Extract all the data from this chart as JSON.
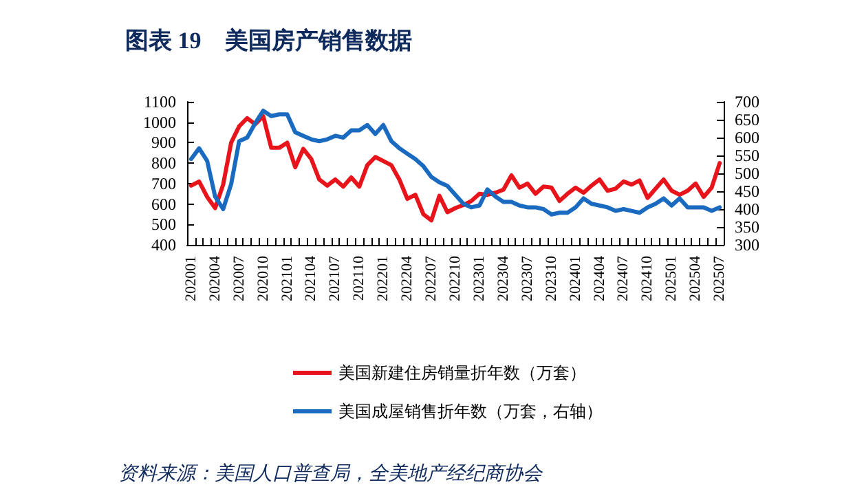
{
  "chart_data": {
    "type": "line",
    "title": "图表 19　美国房产销售数据",
    "annotations": [
      "资料来源：美国人口普查局，全美地产经纪商协会"
    ],
    "categories": [
      "202001",
      null,
      null,
      "202004",
      null,
      null,
      "202007",
      null,
      null,
      "202010",
      null,
      null,
      "202101",
      null,
      null,
      "202104",
      null,
      null,
      "202107",
      null,
      null,
      "202110",
      null,
      null,
      "202201",
      null,
      null,
      "202204",
      null,
      null,
      "202207",
      null,
      null,
      "202210",
      null,
      null,
      "202301",
      null,
      null,
      "202304",
      null,
      null,
      "202307",
      null,
      null,
      "202310",
      null,
      null,
      "202401",
      null,
      null,
      "202404",
      null,
      null,
      "202407",
      null,
      null,
      "202410",
      null,
      null,
      "202501",
      null,
      null,
      "202504",
      null,
      null,
      "202507"
    ],
    "series": [
      {
        "name": "美国新建住房销量折年数（万套）",
        "color": "#e8141b",
        "values": [
          690,
          710,
          635,
          580,
          695,
          900,
          980,
          1020,
          990,
          1030,
          875,
          875,
          900,
          780,
          870,
          820,
          720,
          690,
          720,
          685,
          730,
          685,
          790,
          830,
          810,
          790,
          720,
          625,
          645,
          550,
          520,
          640,
          560,
          580,
          595,
          615,
          650,
          645,
          655,
          670,
          740,
          680,
          700,
          650,
          685,
          680,
          615,
          650,
          680,
          655,
          690,
          720,
          665,
          675,
          710,
          695,
          715,
          630,
          675,
          720,
          665,
          645,
          665,
          700,
          635,
          680,
          800
        ]
      },
      {
        "name": "美国成屋销售折年数（万套，右轴）",
        "color": "#1a6bbf",
        "axis": "y2",
        "values": [
          540,
          570,
          535,
          435,
          400,
          470,
          590,
          600,
          640,
          675,
          660,
          665,
          665,
          615,
          605,
          595,
          590,
          595,
          605,
          600,
          620,
          620,
          635,
          610,
          635,
          590,
          570,
          555,
          540,
          520,
          490,
          475,
          465,
          440,
          415,
          405,
          410,
          455,
          435,
          420,
          420,
          410,
          405,
          405,
          400,
          385,
          390,
          390,
          405,
          430,
          415,
          410,
          405,
          395,
          400,
          395,
          390,
          405,
          415,
          430,
          410,
          430,
          405,
          405,
          405,
          395,
          405
        ]
      }
    ],
    "ylim": [
      400,
      1100
    ],
    "yticks": [
      400,
      500,
      600,
      700,
      800,
      900,
      1000,
      1100
    ],
    "y2lim": [
      300,
      700
    ],
    "y2ticks": [
      300,
      350,
      400,
      450,
      500,
      550,
      600,
      650,
      700
    ],
    "grid": false,
    "legend": "bottom",
    "marker": "none",
    "line_style": "solid"
  }
}
